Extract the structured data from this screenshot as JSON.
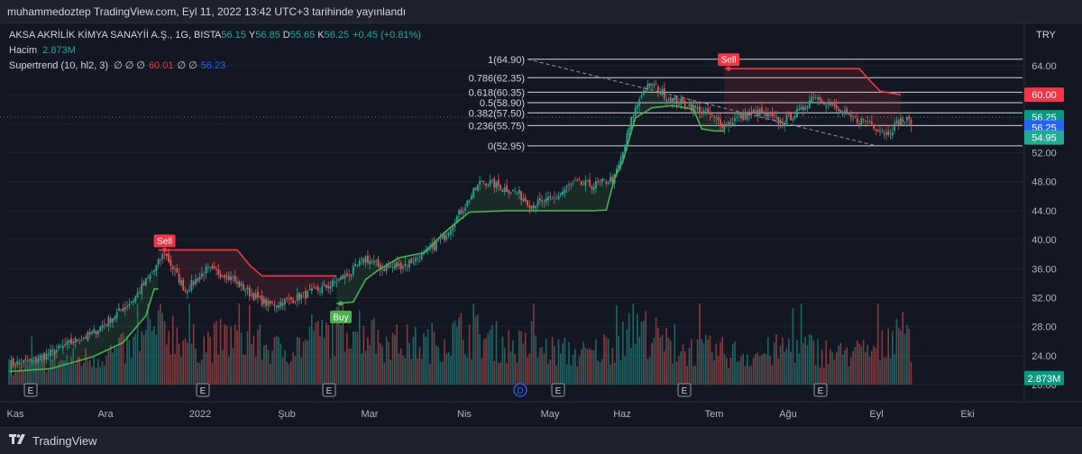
{
  "header": {
    "publish_text": "muhammedoztep TradingView.com, Eyl 11, 2022 13:42 UTC+3 tarihinde yayınlandı"
  },
  "legend": {
    "symbol": "AKSA AKRİLİK KİMYA SANAYİİ A.Ş., 1G, BIST",
    "open_label": "A",
    "open": "56.15",
    "high_label": "Y",
    "high": "56.85",
    "low_label": "D",
    "low": "55.65",
    "close_label": "K",
    "close": "56.25",
    "change": "+0.45 (+0.81%)",
    "volume_label": "Hacim",
    "volume": "2.873M",
    "indicator_label": "Supertrend (10, hl2, 3)",
    "indicator_nulls": "∅ ∅ ∅",
    "indicator_value_red": "60.01",
    "indicator_nulls_2": "∅ ∅",
    "indicator_value_blue": "56.23"
  },
  "price_axis": {
    "currency": "TRY",
    "labels": [
      "64.00",
      "60.00",
      "56.00",
      "52.00",
      "48.00",
      "44.00",
      "40.00",
      "36.00",
      "32.00",
      "28.00",
      "24.00",
      "20.00"
    ],
    "badges": [
      {
        "text": "60.00",
        "color": "#f23645",
        "value": 60.0
      },
      {
        "text": "56.25",
        "color": "#089981",
        "value": 56.9
      },
      {
        "text": "56.25",
        "color": "#2962ff",
        "value": 55.5
      },
      {
        "text": "54.95",
        "color": "#22ab94",
        "value": 54.1
      },
      {
        "text": "2.873M",
        "color": "#089981",
        "value": 20.9
      }
    ]
  },
  "time_axis": {
    "labels": [
      "Kas",
      "Ara",
      "2022",
      "Şub",
      "Mar",
      "Nis",
      "May",
      "Haz",
      "Tem",
      "Ağu",
      "Eyl",
      "Eki"
    ]
  },
  "events": [
    "E",
    "E",
    "E",
    "D",
    "E",
    "E",
    "E"
  ],
  "signals": {
    "sell_label": "Sell",
    "buy_label": "Buy"
  },
  "brand": {
    "name": "TradingView"
  },
  "colors": {
    "up": "#26a69a",
    "down": "#ef5350",
    "bg": "#131722",
    "st_up": "#4caf50",
    "st_down": "#f23645"
  },
  "chart_data": {
    "type": "candlestick",
    "title": "AKSA AKRİLİK KİMYA SANAYİİ A.Ş., 1G, BIST",
    "ylabel": "TRY",
    "ylim": [
      20,
      66
    ],
    "x_ticks": [
      "Kas",
      "Ara",
      "2022",
      "Şub",
      "Mar",
      "Nis",
      "May",
      "Haz",
      "Tem",
      "Ağu",
      "Eyl",
      "Eki"
    ],
    "last_ohlc": {
      "open": 56.15,
      "high": 56.85,
      "low": 55.65,
      "close": 56.25,
      "change": "+0.45 (+0.81%)"
    },
    "close_path": [
      [
        0,
        22.8
      ],
      [
        10,
        23.2
      ],
      [
        20,
        24.3
      ],
      [
        30,
        25.8
      ],
      [
        40,
        27.0
      ],
      [
        50,
        29.3
      ],
      [
        60,
        31.8
      ],
      [
        70,
        35.8
      ],
      [
        75,
        38.2
      ],
      [
        80,
        35.5
      ],
      [
        85,
        33.0
      ],
      [
        95,
        35.8
      ],
      [
        105,
        35.2
      ],
      [
        110,
        34.0
      ],
      [
        118,
        32.2
      ],
      [
        125,
        31.0
      ],
      [
        135,
        31.6
      ],
      [
        145,
        32.6
      ],
      [
        155,
        33.7
      ],
      [
        165,
        35.5
      ],
      [
        172,
        37.5
      ],
      [
        180,
        36.0
      ],
      [
        190,
        36.5
      ],
      [
        200,
        37.8
      ],
      [
        210,
        40.5
      ],
      [
        220,
        44.8
      ],
      [
        228,
        48.2
      ],
      [
        235,
        47.5
      ],
      [
        245,
        46.5
      ],
      [
        252,
        44.8
      ],
      [
        262,
        45.5
      ],
      [
        272,
        47.8
      ],
      [
        282,
        47.5
      ],
      [
        292,
        48.5
      ],
      [
        296,
        52.0
      ],
      [
        300,
        56.5
      ],
      [
        305,
        60.2
      ],
      [
        310,
        61.5
      ],
      [
        318,
        59.5
      ],
      [
        328,
        58.5
      ],
      [
        338,
        57.2
      ],
      [
        345,
        55.8
      ],
      [
        352,
        57.0
      ],
      [
        362,
        57.5
      ],
      [
        372,
        56.2
      ],
      [
        382,
        57.8
      ],
      [
        388,
        60.0
      ],
      [
        395,
        58.8
      ],
      [
        405,
        56.8
      ],
      [
        415,
        56.2
      ],
      [
        423,
        54.6
      ],
      [
        430,
        56.5
      ],
      [
        435,
        56.25
      ]
    ],
    "volume_path": [
      [
        0,
        1.5
      ],
      [
        20,
        2.0
      ],
      [
        40,
        2.4
      ],
      [
        60,
        3.3
      ],
      [
        75,
        5.2
      ],
      [
        90,
        3.5
      ],
      [
        110,
        4.2
      ],
      [
        130,
        3.0
      ],
      [
        150,
        4.0
      ],
      [
        165,
        5.5
      ],
      [
        180,
        3.8
      ],
      [
        200,
        3.5
      ],
      [
        220,
        4.6
      ],
      [
        240,
        3.5
      ],
      [
        260,
        3.0
      ],
      [
        280,
        2.6
      ],
      [
        295,
        4.0
      ],
      [
        305,
        4.9
      ],
      [
        320,
        3.1
      ],
      [
        340,
        2.9
      ],
      [
        360,
        2.6
      ],
      [
        380,
        3.4
      ],
      [
        400,
        2.6
      ],
      [
        420,
        3.0
      ],
      [
        430,
        5.9
      ],
      [
        435,
        2.873
      ]
    ],
    "supertrend": {
      "length": 10,
      "source": "hl2",
      "factor": 3,
      "segments": [
        {
          "dir": "up",
          "points": [
            [
              0,
              21.8
            ],
            [
              20,
              22.2
            ],
            [
              40,
              23.8
            ],
            [
              55,
              25.8
            ],
            [
              66,
              29.5
            ],
            [
              70,
              33.2
            ],
            [
              72,
              33.2
            ]
          ]
        },
        {
          "dir": "down",
          "points": [
            [
              72,
              38.6
            ],
            [
              110,
              38.6
            ],
            [
              116,
              36.5
            ],
            [
              122,
              35.0
            ],
            [
              135,
              35.0
            ],
            [
              158,
              35.0
            ]
          ]
        },
        {
          "dir": "up",
          "points": [
            [
              158,
              31.2
            ],
            [
              166,
              31.4
            ],
            [
              172,
              34.5
            ],
            [
              178,
              35.8
            ],
            [
              188,
              37.5
            ],
            [
              200,
              38.2
            ],
            [
              210,
              41.0
            ],
            [
              222,
              43.8
            ],
            [
              240,
              44.0
            ],
            [
              262,
              44.0
            ],
            [
              282,
              44.0
            ],
            [
              288,
              44.1
            ],
            [
              292,
              48.5
            ],
            [
              296,
              50.8
            ],
            [
              302,
              56.8
            ],
            [
              310,
              58.2
            ],
            [
              320,
              58.5
            ],
            [
              330,
              58.0
            ],
            [
              334,
              55.3
            ],
            [
              340,
              55.0
            ],
            [
              345,
              55.0
            ]
          ]
        },
        {
          "dir": "down",
          "points": [
            [
              345,
              63.6
            ],
            [
              370,
              63.6
            ],
            [
              395,
              63.6
            ],
            [
              410,
              63.6
            ],
            [
              414,
              62.3
            ],
            [
              420,
              60.5
            ],
            [
              430,
              60.0
            ]
          ]
        }
      ],
      "signals": [
        {
          "label": "Sell",
          "x": 75,
          "price": 38.6
        },
        {
          "label": "Buy",
          "x": 160,
          "price": 31.2
        },
        {
          "label": "Sell",
          "x": 347,
          "price": 63.6
        }
      ]
    },
    "fibonacci": {
      "range": [
        52.95,
        64.9
      ],
      "levels": [
        {
          "ratio": "1",
          "price": 64.9,
          "label": "1(64.90)"
        },
        {
          "ratio": "0.786",
          "price": 62.35,
          "label": "0.786(62.35)"
        },
        {
          "ratio": "0.618",
          "price": 60.35,
          "label": "0.618(60.35)"
        },
        {
          "ratio": "0.5",
          "price": 58.9,
          "label": "0.5(58.90)"
        },
        {
          "ratio": "0.382",
          "price": 57.5,
          "label": "0.382(57.50)"
        },
        {
          "ratio": "0.236",
          "price": 55.75,
          "label": "0.236(55.75)"
        },
        {
          "ratio": "0",
          "price": 52.95,
          "label": "0(52.95)"
        }
      ],
      "trend_line": {
        "from_price": 64.9,
        "to_price": 52.95
      }
    }
  }
}
